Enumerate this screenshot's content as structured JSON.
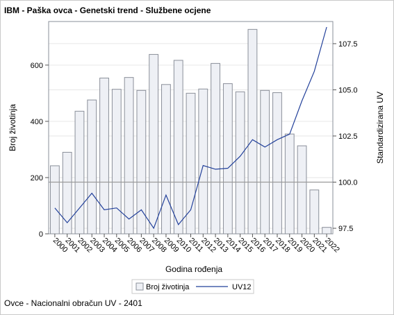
{
  "title": "IBM - Paška ovca - Genetski trend - Službene ocjene",
  "footnote": "Ovce - Nacionalni obračun UV - 2401",
  "chart_data": {
    "type": "bar+line",
    "categories": [
      "2000",
      "2001",
      "2002",
      "2003",
      "2004",
      "2005",
      "2006",
      "2007",
      "2008",
      "2009",
      "2010",
      "2011",
      "2012",
      "2013",
      "2014",
      "2015",
      "2016",
      "2017",
      "2018",
      "2019",
      "2020",
      "2021",
      "2022"
    ],
    "bar_series": {
      "name": "Broj životinja",
      "values": [
        242,
        290,
        436,
        476,
        554,
        514,
        556,
        510,
        638,
        531,
        617,
        500,
        515,
        606,
        534,
        505,
        727,
        510,
        502,
        355,
        313,
        156,
        23
      ]
    },
    "line_series": {
      "name": "UV12",
      "values": [
        98.6,
        97.8,
        98.6,
        99.4,
        98.5,
        98.6,
        98.0,
        98.5,
        97.5,
        99.3,
        97.7,
        98.5,
        100.9,
        100.7,
        100.75,
        101.4,
        102.3,
        101.9,
        102.3,
        102.6,
        104.4,
        106.0,
        108.4
      ]
    },
    "xlabel": "Godina rođenja",
    "ylabel_left": "Broj životinja",
    "ylabel_right": "Standardizirana UV",
    "ylim_left": [
      0,
      755
    ],
    "yticks_left": [
      0,
      200,
      400,
      600
    ],
    "ylim_right": [
      97.2,
      108.7
    ],
    "yticks_right": [
      97.5,
      100.0,
      102.5,
      105.0,
      107.5
    ],
    "reference_line_right": 100.0,
    "grid": "horizontal",
    "legend_placement": "bottom",
    "colors": {
      "bar_fill": "#eef0f5",
      "bar_stroke": "#8a8f99",
      "line": "#22409a",
      "grid": "#e6e6e6",
      "reference": "#9a9a9a"
    }
  }
}
